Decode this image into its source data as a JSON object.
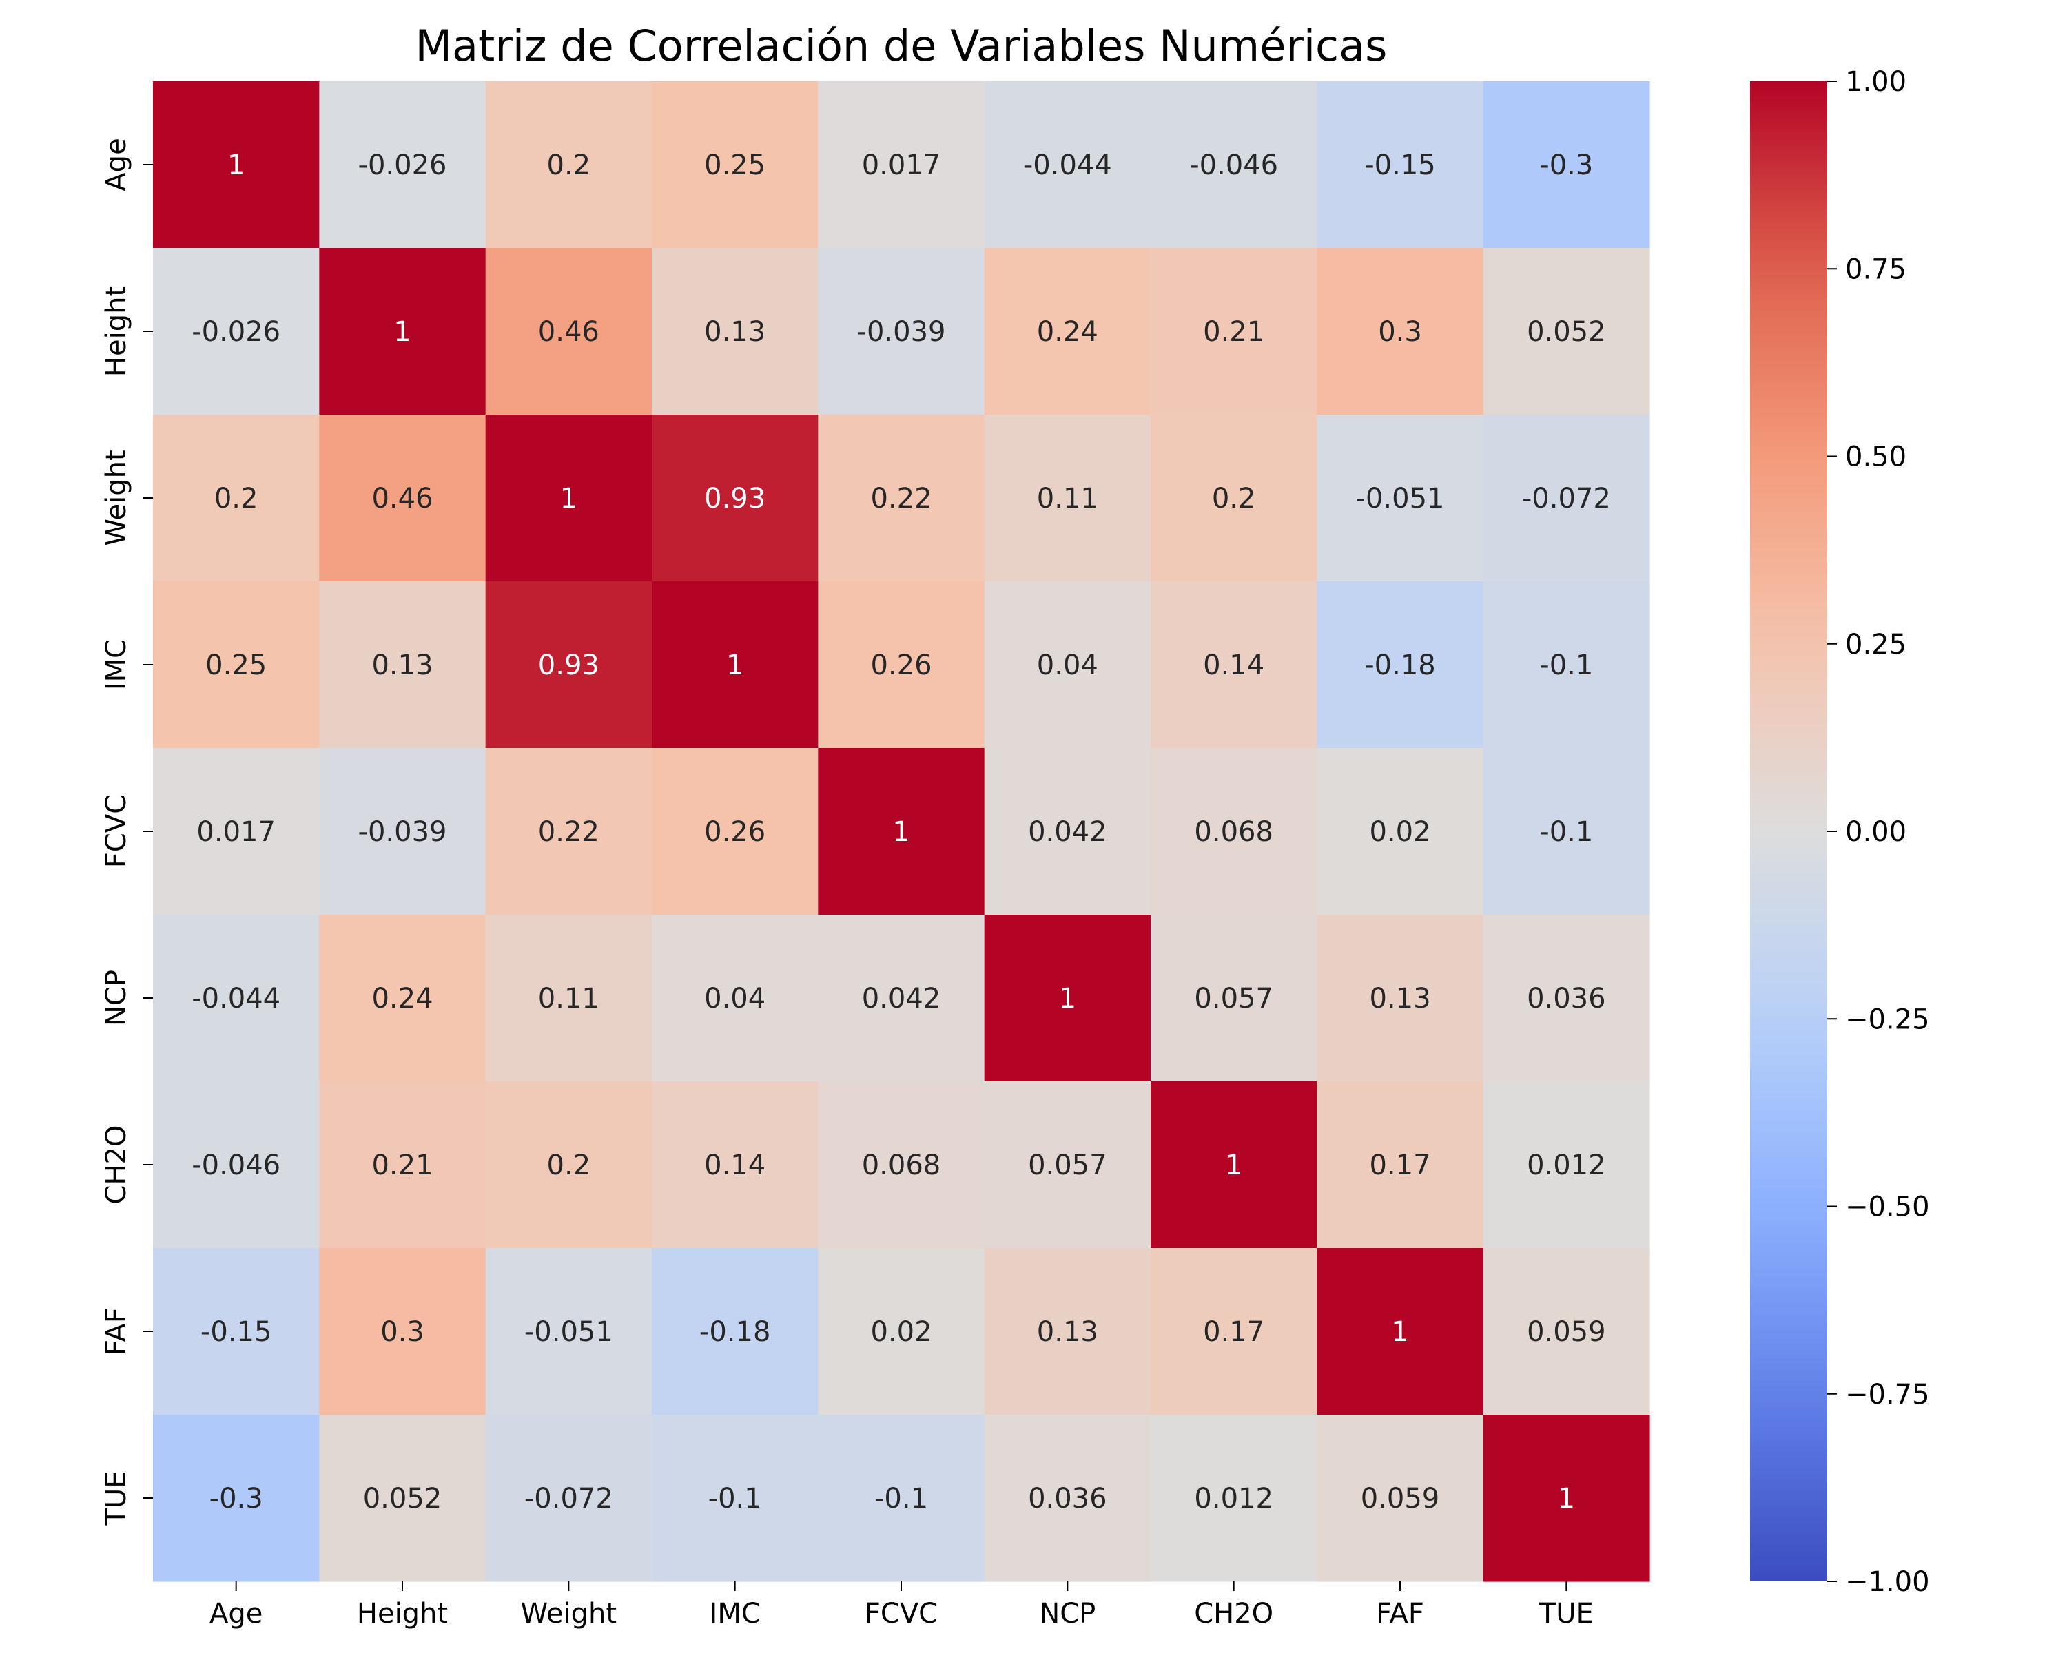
{
  "chart_data": {
    "type": "heatmap",
    "title": "Matriz de Correlación de Variables Numéricas",
    "x_labels": [
      "Age",
      "Height",
      "Weight",
      "IMC",
      "FCVC",
      "NCP",
      "CH2O",
      "FAF",
      "TUE"
    ],
    "y_labels": [
      "Age",
      "Height",
      "Weight",
      "IMC",
      "FCVC",
      "NCP",
      "CH2O",
      "FAF",
      "TUE"
    ],
    "values": [
      [
        1,
        -0.026,
        0.2,
        0.25,
        0.017,
        -0.044,
        -0.046,
        -0.15,
        -0.3
      ],
      [
        -0.026,
        1,
        0.46,
        0.13,
        -0.039,
        0.24,
        0.21,
        0.3,
        0.052
      ],
      [
        0.2,
        0.46,
        1,
        0.93,
        0.22,
        0.11,
        0.2,
        -0.051,
        -0.072
      ],
      [
        0.25,
        0.13,
        0.93,
        1,
        0.26,
        0.04,
        0.14,
        -0.18,
        -0.1
      ],
      [
        0.017,
        -0.039,
        0.22,
        0.26,
        1,
        0.042,
        0.068,
        0.02,
        -0.1
      ],
      [
        -0.044,
        0.24,
        0.11,
        0.04,
        0.042,
        1,
        0.057,
        0.13,
        0.036
      ],
      [
        -0.046,
        0.21,
        0.2,
        0.14,
        0.068,
        0.057,
        1,
        0.17,
        0.012
      ],
      [
        -0.15,
        0.3,
        -0.051,
        -0.18,
        0.02,
        0.13,
        0.17,
        1,
        0.059
      ],
      [
        -0.3,
        0.052,
        -0.072,
        -0.1,
        -0.1,
        0.036,
        0.012,
        0.059,
        1
      ]
    ],
    "colormap": "coolwarm",
    "vmin": -1,
    "vmax": 1,
    "colorbar_ticks": [
      "1.00",
      "0.75",
      "0.50",
      "0.25",
      "0.00",
      "−0.25",
      "−0.50",
      "−0.75",
      "−1.00"
    ],
    "colorbar_tick_values": [
      1.0,
      0.75,
      0.5,
      0.25,
      0.0,
      -0.25,
      -0.5,
      -0.75,
      -1.0
    ]
  }
}
